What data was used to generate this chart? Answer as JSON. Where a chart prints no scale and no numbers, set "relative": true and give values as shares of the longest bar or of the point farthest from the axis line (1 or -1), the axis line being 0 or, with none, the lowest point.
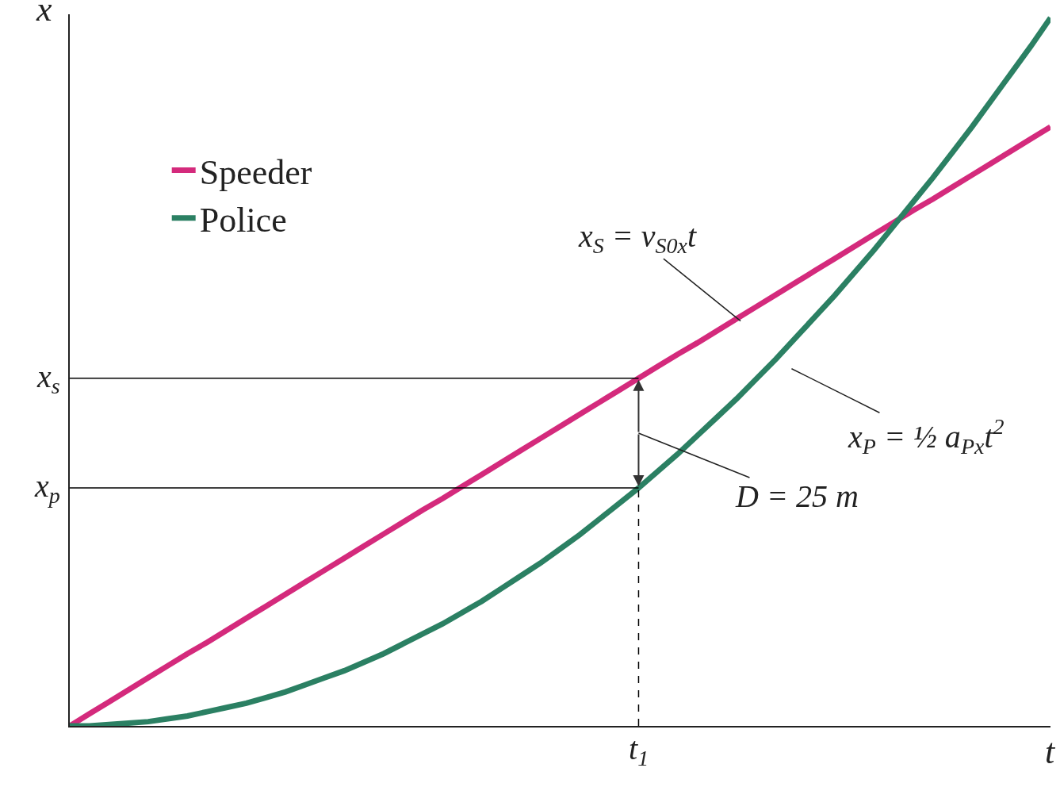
{
  "chart_data": {
    "type": "line",
    "relative": true,
    "xlabel": "t",
    "ylabel": "x",
    "legend": "top left",
    "grid": false,
    "marker": "none",
    "line_style": "solid",
    "categories": [
      null,
      null,
      null,
      null,
      null,
      null,
      null,
      null,
      null,
      null,
      null,
      null,
      null,
      null,
      null,
      null,
      null,
      null,
      null,
      null,
      null,
      null,
      null,
      null,
      null,
      null,
      null,
      null,
      null,
      null,
      null,
      null,
      null,
      null,
      null,
      null,
      null,
      null,
      null,
      null,
      null,
      null,
      null,
      null,
      null,
      null,
      null,
      null,
      null,
      null,
      null
    ],
    "series": [
      {
        "name": "Speeder",
        "color": "#d42a7c",
        "values": [
          0,
          0.017,
          0.034,
          0.051,
          0.068,
          0.085,
          0.102,
          0.118,
          0.135,
          0.152,
          0.169,
          0.186,
          0.203,
          0.22,
          0.237,
          0.254,
          0.271,
          0.288,
          0.305,
          0.321,
          0.338,
          0.355,
          0.372,
          0.389,
          0.406,
          0.423,
          0.44,
          0.457,
          0.474,
          0.491,
          0.508,
          0.525,
          0.541,
          0.558,
          0.575,
          0.592,
          0.609,
          0.626,
          0.643,
          0.66,
          0.677,
          0.694,
          0.711,
          0.728,
          0.744,
          0.761,
          0.778,
          0.795,
          0.812,
          0.829,
          0.846
        ]
      },
      {
        "name": "Police",
        "color": "#2b8063",
        "values": [
          0,
          0,
          0.002,
          0.004,
          0.006,
          0.01,
          0.014,
          0.02,
          0.026,
          0.032,
          0.04,
          0.048,
          0.058,
          0.068,
          0.078,
          0.09,
          0.102,
          0.116,
          0.13,
          0.144,
          0.16,
          0.176,
          0.194,
          0.212,
          0.23,
          0.25,
          0.27,
          0.292,
          0.314,
          0.336,
          0.36,
          0.384,
          0.41,
          0.436,
          0.462,
          0.49,
          0.518,
          0.548,
          0.578,
          0.608,
          0.64,
          0.672,
          0.706,
          0.74,
          0.774,
          0.81,
          0.846,
          0.884,
          0.922,
          0.96,
          1
        ]
      }
    ],
    "ref_lines": [
      {
        "axis": "y",
        "value": 0.491,
        "label": "x$_{s}$",
        "color": "#000000",
        "line_style": "solid"
      },
      {
        "axis": "y",
        "value": 0.336,
        "label": "x$_{p}$",
        "color": "#000000",
        "line_style": "solid"
      }
    ],
    "annotations": [
      "x$_{S}$ = v$_{S0x}$t",
      "x$_{P}$ = ½ a$_{Px}$t$^{2}$",
      "D = 25 m",
      "t$_{1}$"
    ]
  }
}
